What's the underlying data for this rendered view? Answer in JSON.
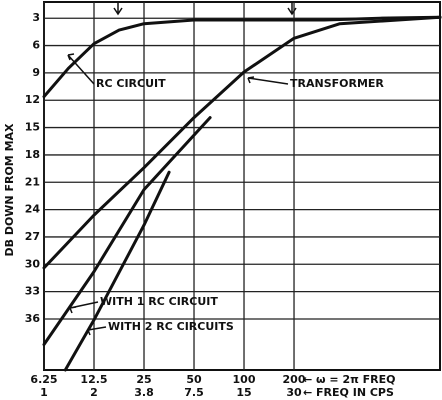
{
  "chart_data": {
    "type": "line",
    "y_label": "DB DOWN FROM MAX",
    "xscale": "log",
    "xlim": [
      6.25,
      1513
    ],
    "ylim": [
      1,
      41.6
    ],
    "y_inverted": true,
    "xticks": [
      {
        "value": 6.25,
        "label": "6.25"
      },
      {
        "value": 12.5,
        "label": "12.5"
      },
      25,
      50,
      100,
      200
    ],
    "x2_labels": [
      "1",
      "2",
      "3.8",
      "7.5",
      "15",
      "30"
    ],
    "x_label": "← ω = 2π FREQ",
    "x2_label": "← FREQ IN CPS",
    "yticks": [
      3,
      6,
      9,
      12,
      15,
      18,
      21,
      24,
      27,
      30,
      33,
      36
    ],
    "grid": true,
    "series": [
      {
        "name": "RC CIRCUIT",
        "color": "#111111",
        "x": [
          6.25,
          8.77,
          12.5,
          17.7,
          25,
          50,
          100,
          304,
          658,
          1513
        ],
        "values": [
          11.6,
          8.5,
          5.8,
          4.3,
          3.6,
          3.2,
          3.2,
          3.2,
          3.0,
          2.9
        ]
      },
      {
        "name": "TRANSFORMER",
        "color": "#111111",
        "x": [
          6.25,
          12.5,
          25,
          50,
          100,
          200,
          378,
          1513
        ],
        "values": [
          30.4,
          24.6,
          19.4,
          13.9,
          8.9,
          5.2,
          3.6,
          2.9
        ]
      },
      {
        "name": "WITH 1 RC CIRCUIT",
        "color": "#111111",
        "x": [
          6.25,
          12.5,
          25,
          62.5
        ],
        "values": [
          38.8,
          30.8,
          21.8,
          13.9
        ]
      },
      {
        "name": "WITH 2 RC CIRCUITS",
        "color": "#111111",
        "x": [
          8.4,
          12.5,
          25,
          35.4
        ],
        "values": [
          41.6,
          36.1,
          25.7,
          19.9
        ]
      }
    ]
  }
}
